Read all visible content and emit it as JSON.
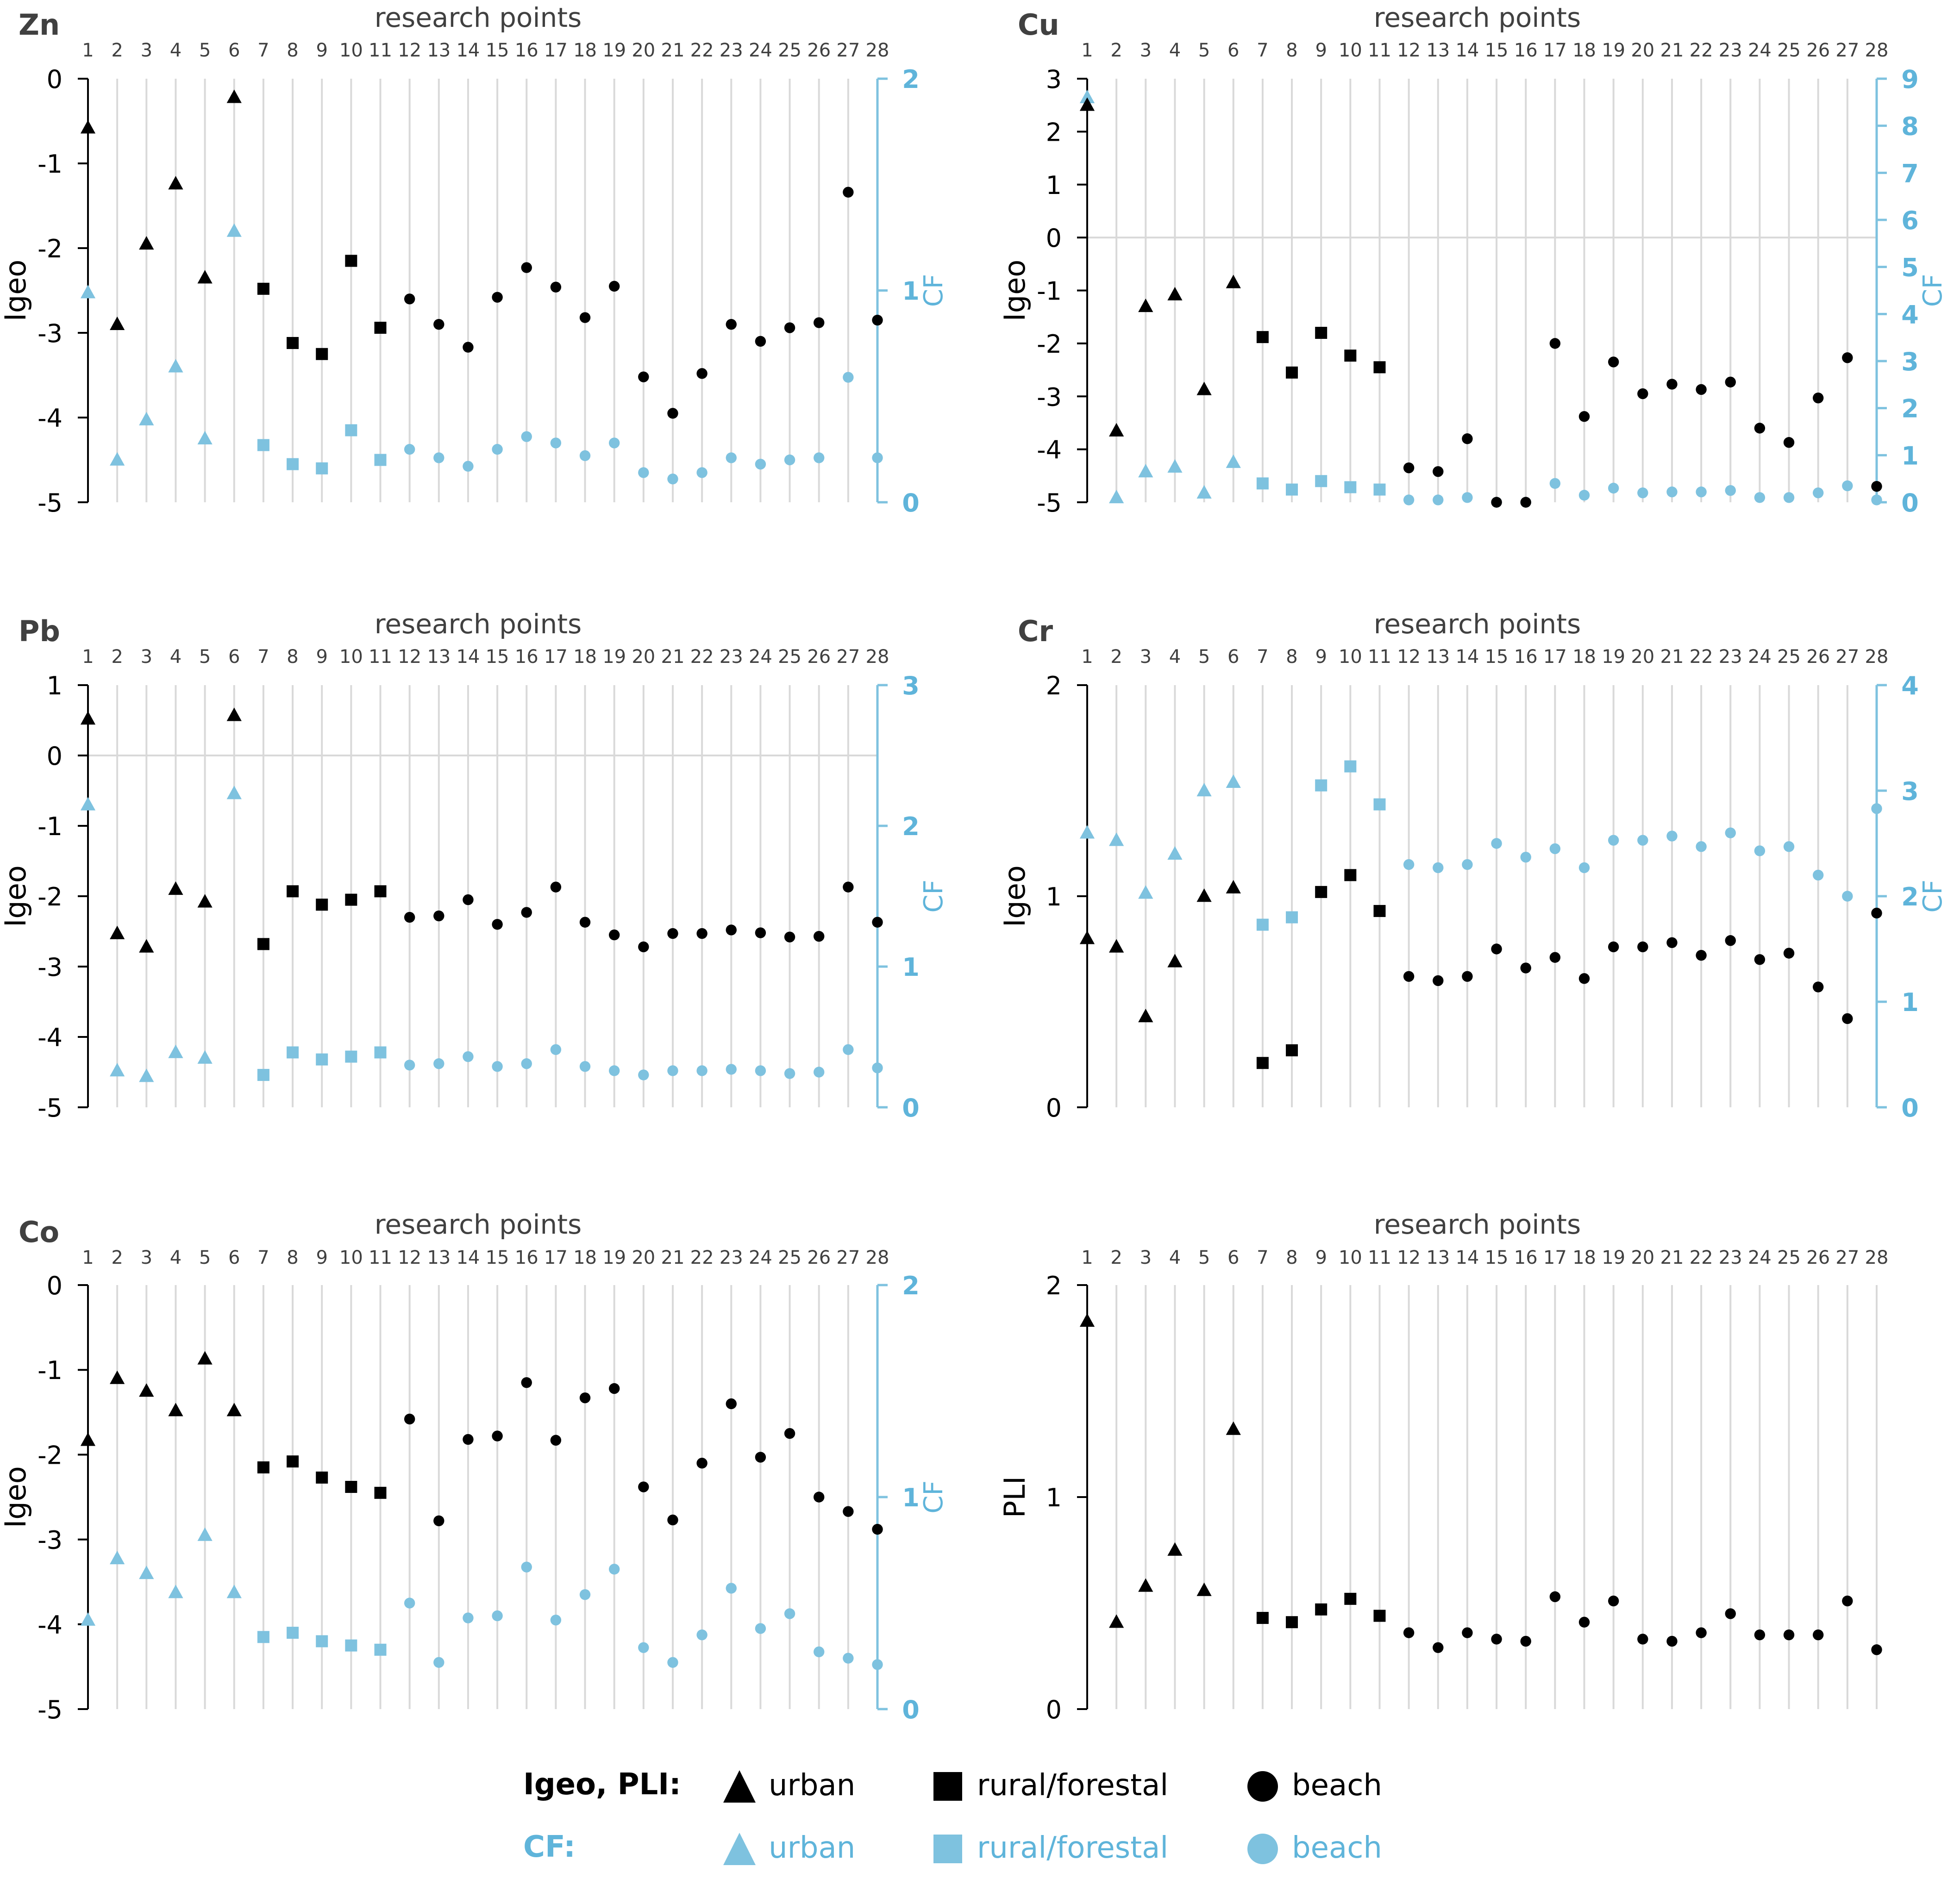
{
  "colors": {
    "igeo": "#000000",
    "cf": "#7ec2df",
    "grid": "#d9d9d9",
    "axis_text": "#404040",
    "cf_text": "#5fb4da"
  },
  "chart_data": [
    {
      "type": "scatter",
      "title": "Zn",
      "top_label": "research points",
      "ylabel": "Igeo",
      "y2label": "CF",
      "ylim": [
        -5,
        0
      ],
      "y2lim": [
        0,
        2
      ],
      "yticks": [
        "0",
        "-1",
        "-2",
        "-3",
        "-4",
        "-5"
      ],
      "y2ticks": [
        "2",
        "1",
        "0"
      ],
      "x": [
        "1",
        "2",
        "3",
        "4",
        "5",
        "6",
        "7",
        "8",
        "9",
        "10",
        "11",
        "12",
        "13",
        "14",
        "15",
        "16",
        "17",
        "18",
        "19",
        "20",
        "21",
        "22",
        "23",
        "24",
        "25",
        "26",
        "27",
        "28"
      ],
      "categories": [
        "urban",
        "urban",
        "urban",
        "urban",
        "urban",
        "urban",
        "rural/forestal",
        "rural/forestal",
        "rural/forestal",
        "rural/forestal",
        "rural/forestal",
        "beach",
        "beach",
        "beach",
        "beach",
        "beach",
        "beach",
        "beach",
        "beach",
        "beach",
        "beach",
        "beach",
        "beach",
        "beach",
        "beach",
        "beach",
        "beach",
        "beach"
      ],
      "igeo": [
        -0.58,
        -2.9,
        -1.95,
        -1.24,
        -2.35,
        -0.22,
        -2.48,
        -3.12,
        -3.25,
        -2.15,
        -2.94,
        -2.6,
        -2.9,
        -3.17,
        -2.58,
        -2.23,
        -2.46,
        -2.82,
        -2.45,
        -3.52,
        -3.95,
        -3.48,
        -2.9,
        -3.1,
        -2.94,
        -2.88,
        -1.34,
        -2.85
      ],
      "cf": [
        0.99,
        0.2,
        0.39,
        0.64,
        0.3,
        1.28,
        0.27,
        0.18,
        0.16,
        0.34,
        0.2,
        0.25,
        0.21,
        0.17,
        0.25,
        0.31,
        0.28,
        0.22,
        0.28,
        0.14,
        0.11,
        0.14,
        0.21,
        0.18,
        0.2,
        0.21,
        0.59,
        0.21
      ]
    },
    {
      "type": "scatter",
      "title": "Cu",
      "top_label": "research points",
      "ylabel": "Igeo",
      "y2label": "CF",
      "ylim": [
        -5,
        3
      ],
      "y2lim": [
        0,
        9
      ],
      "yticks": [
        "3",
        "2",
        "1",
        "0",
        "-1",
        "-2",
        "-3",
        "-4",
        "-5"
      ],
      "y2ticks": [
        "9",
        "8",
        "7",
        "6",
        "5",
        "4",
        "3",
        "2",
        "1",
        "0"
      ],
      "x": [
        "1",
        "2",
        "3",
        "4",
        "5",
        "6",
        "7",
        "8",
        "9",
        "10",
        "11",
        "12",
        "13",
        "14",
        "15",
        "16",
        "17",
        "18",
        "19",
        "20",
        "21",
        "22",
        "23",
        "24",
        "25",
        "26",
        "27",
        "28"
      ],
      "categories": [
        "urban",
        "urban",
        "urban",
        "urban",
        "urban",
        "urban",
        "rural/forestal",
        "rural/forestal",
        "rural/forestal",
        "rural/forestal",
        "rural/forestal",
        "beach",
        "beach",
        "beach",
        "beach",
        "beach",
        "beach",
        "beach",
        "beach",
        "beach",
        "beach",
        "beach",
        "beach",
        "beach",
        "beach",
        "beach",
        "beach",
        "beach"
      ],
      "igeo": [
        2.5,
        -3.65,
        -1.3,
        -1.08,
        -2.87,
        -0.85,
        -1.88,
        -2.55,
        -1.8,
        -2.23,
        -2.45,
        -4.35,
        -4.42,
        -3.8,
        -5.0,
        -5.0,
        -2.0,
        -3.38,
        -2.35,
        -2.95,
        -2.77,
        -2.87,
        -2.73,
        -3.6,
        -3.87,
        -3.03,
        -2.27,
        -4.7
      ],
      "cf": [
        8.6,
        0.1,
        0.65,
        0.75,
        0.2,
        0.85,
        0.4,
        0.27,
        0.45,
        0.32,
        0.27,
        0.05,
        0.05,
        0.1,
        0.0,
        0.0,
        0.4,
        0.15,
        0.3,
        0.2,
        0.22,
        0.22,
        0.25,
        0.1,
        0.1,
        0.2,
        0.35,
        0.05
      ]
    },
    {
      "type": "scatter",
      "title": "Pb",
      "top_label": "research points",
      "ylabel": "Igeo",
      "y2label": "CF",
      "ylim": [
        -5,
        1
      ],
      "y2lim": [
        0,
        3
      ],
      "yticks": [
        "1",
        "0",
        "-1",
        "-2",
        "-3",
        "-4",
        "-5"
      ],
      "y2ticks": [
        "3",
        "2",
        "1",
        "0"
      ],
      "x": [
        "1",
        "2",
        "3",
        "4",
        "5",
        "6",
        "7",
        "8",
        "9",
        "10",
        "11",
        "12",
        "13",
        "14",
        "15",
        "16",
        "17",
        "18",
        "19",
        "20",
        "21",
        "22",
        "23",
        "24",
        "25",
        "26",
        "27",
        "28"
      ],
      "categories": [
        "urban",
        "urban",
        "urban",
        "urban",
        "urban",
        "urban",
        "rural/forestal",
        "rural/forestal",
        "rural/forestal",
        "rural/forestal",
        "rural/forestal",
        "beach",
        "beach",
        "beach",
        "beach",
        "beach",
        "beach",
        "beach",
        "beach",
        "beach",
        "beach",
        "beach",
        "beach",
        "beach",
        "beach",
        "beach",
        "beach",
        "beach"
      ],
      "igeo": [
        0.52,
        -2.53,
        -2.72,
        -1.9,
        -2.08,
        0.57,
        -2.68,
        -1.93,
        -2.12,
        -2.05,
        -1.93,
        -2.3,
        -2.28,
        -2.05,
        -2.4,
        -2.23,
        -1.87,
        -2.37,
        -2.55,
        -2.72,
        -2.53,
        -2.53,
        -2.48,
        -2.52,
        -2.58,
        -2.57,
        -1.87,
        -2.37
      ],
      "cf": [
        2.15,
        0.26,
        0.22,
        0.39,
        0.35,
        2.23,
        0.23,
        0.39,
        0.34,
        0.36,
        0.39,
        0.3,
        0.31,
        0.36,
        0.29,
        0.31,
        0.41,
        0.29,
        0.26,
        0.23,
        0.26,
        0.26,
        0.27,
        0.26,
        0.24,
        0.25,
        0.41,
        0.28
      ]
    },
    {
      "type": "scatter",
      "title": "Cr",
      "top_label": "research points",
      "ylabel": "Igeo",
      "y2label": "CF",
      "ylim": [
        0,
        2
      ],
      "y2lim": [
        0,
        4
      ],
      "yticks": [
        "2",
        "1",
        "0"
      ],
      "y2ticks": [
        "4",
        "3",
        "2",
        "1",
        "0"
      ],
      "x": [
        "1",
        "2",
        "3",
        "4",
        "5",
        "6",
        "7",
        "8",
        "9",
        "10",
        "11",
        "12",
        "13",
        "14",
        "15",
        "16",
        "17",
        "18",
        "19",
        "20",
        "21",
        "22",
        "23",
        "24",
        "25",
        "26",
        "27",
        "28"
      ],
      "categories": [
        "urban",
        "urban",
        "urban",
        "urban",
        "urban",
        "urban",
        "rural/forestal",
        "rural/forestal",
        "rural/forestal",
        "rural/forestal",
        "rural/forestal",
        "beach",
        "beach",
        "beach",
        "beach",
        "beach",
        "beach",
        "beach",
        "beach",
        "beach",
        "beach",
        "beach",
        "beach",
        "beach",
        "beach",
        "beach",
        "beach",
        "beach"
      ],
      "igeo": [
        0.8,
        0.76,
        0.43,
        0.69,
        1.0,
        1.04,
        0.21,
        0.27,
        1.02,
        1.1,
        0.93,
        0.62,
        0.6,
        0.62,
        0.75,
        0.66,
        0.71,
        0.61,
        0.76,
        0.76,
        0.78,
        0.72,
        0.79,
        0.7,
        0.73,
        0.57,
        0.42,
        0.92
      ],
      "cf": [
        2.6,
        2.53,
        2.03,
        2.4,
        3.0,
        3.08,
        1.73,
        1.8,
        3.05,
        3.23,
        2.87,
        2.3,
        2.27,
        2.3,
        2.5,
        2.37,
        2.45,
        2.27,
        2.53,
        2.53,
        2.57,
        2.47,
        2.6,
        2.43,
        2.47,
        2.2,
        2.0,
        2.83
      ]
    },
    {
      "type": "scatter",
      "title": "Co",
      "top_label": "research points",
      "ylabel": "Igeo",
      "y2label": "CF",
      "ylim": [
        -5,
        0
      ],
      "y2lim": [
        0,
        2
      ],
      "yticks": [
        "0",
        "-1",
        "-2",
        "-3",
        "-4",
        "-5"
      ],
      "y2ticks": [
        "2",
        "1",
        "0"
      ],
      "x": [
        "1",
        "2",
        "3",
        "4",
        "5",
        "6",
        "7",
        "8",
        "9",
        "10",
        "11",
        "12",
        "13",
        "14",
        "15",
        "16",
        "17",
        "18",
        "19",
        "20",
        "21",
        "22",
        "23",
        "24",
        "25",
        "26",
        "27",
        "28"
      ],
      "categories": [
        "urban",
        "urban",
        "urban",
        "urban",
        "urban",
        "urban",
        "rural/forestal",
        "rural/forestal",
        "rural/forestal",
        "rural/forestal",
        "rural/forestal",
        "beach",
        "beach",
        "beach",
        "beach",
        "beach",
        "beach",
        "beach",
        "beach",
        "beach",
        "beach",
        "beach",
        "beach",
        "beach",
        "beach",
        "beach",
        "beach",
        "beach"
      ],
      "igeo": [
        -1.83,
        -1.1,
        -1.25,
        -1.48,
        -0.87,
        -1.48,
        -2.15,
        -2.08,
        -2.27,
        -2.38,
        -2.45,
        -1.58,
        -2.78,
        -1.82,
        -1.78,
        -1.15,
        -1.83,
        -1.33,
        -1.22,
        -2.38,
        -2.77,
        -2.1,
        -1.4,
        -2.03,
        -1.75,
        -2.5,
        -2.67,
        -2.88
      ],
      "cf": [
        0.42,
        0.71,
        0.64,
        0.55,
        0.82,
        0.55,
        0.34,
        0.36,
        0.32,
        0.3,
        0.28,
        0.5,
        0.22,
        0.43,
        0.44,
        0.67,
        0.42,
        0.54,
        0.66,
        0.29,
        0.22,
        0.35,
        0.57,
        0.38,
        0.45,
        0.27,
        0.24,
        0.21
      ]
    },
    {
      "type": "scatter",
      "title": "",
      "top_label": "research points",
      "ylabel": "PLI",
      "ylim": [
        0,
        2
      ],
      "yticks": [
        "2",
        "1",
        "0"
      ],
      "x": [
        "1",
        "2",
        "3",
        "4",
        "5",
        "6",
        "7",
        "8",
        "9",
        "10",
        "11",
        "12",
        "13",
        "14",
        "15",
        "16",
        "17",
        "18",
        "19",
        "20",
        "21",
        "22",
        "23",
        "24",
        "25",
        "26",
        "27",
        "28"
      ],
      "categories": [
        "urban",
        "urban",
        "urban",
        "urban",
        "urban",
        "urban",
        "rural/forestal",
        "rural/forestal",
        "rural/forestal",
        "rural/forestal",
        "rural/forestal",
        "beach",
        "beach",
        "beach",
        "beach",
        "beach",
        "beach",
        "beach",
        "beach",
        "beach",
        "beach",
        "beach",
        "beach",
        "beach",
        "beach",
        "beach",
        "beach",
        "beach"
      ],
      "pli": [
        1.83,
        0.41,
        0.58,
        0.75,
        0.56,
        1.32,
        0.43,
        0.41,
        0.47,
        0.52,
        0.44,
        0.36,
        0.29,
        0.36,
        0.33,
        0.32,
        0.53,
        0.41,
        0.51,
        0.33,
        0.32,
        0.36,
        0.45,
        0.35,
        0.35,
        0.35,
        0.51,
        0.28
      ]
    }
  ],
  "legend": {
    "igeo_label": "Igeo, PLI:",
    "cf_label": "CF:",
    "items": [
      {
        "label": "urban",
        "shape": "triangle"
      },
      {
        "label": "rural/forestal",
        "shape": "square"
      },
      {
        "label": "beach",
        "shape": "circle"
      }
    ]
  }
}
